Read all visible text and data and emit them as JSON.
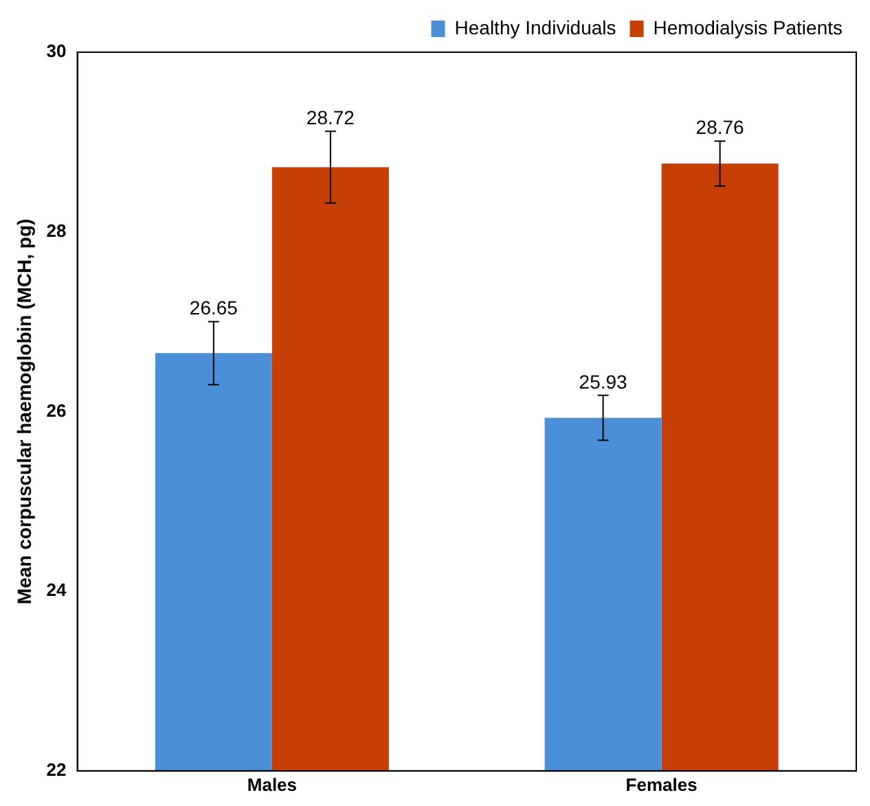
{
  "chart_data": {
    "type": "bar",
    "ylabel": "Mean corpuscular haemoglobin (MCH, pg)",
    "categories": [
      "Males",
      "Females"
    ],
    "series": [
      {
        "name": "Healthy Individuals",
        "color": "#4a8fd8",
        "values": [
          26.65,
          25.93
        ],
        "errors": [
          0.35,
          0.25
        ]
      },
      {
        "name": "Hemodialysis Patients",
        "color": "#c63f05",
        "values": [
          28.72,
          28.76
        ],
        "errors": [
          0.4,
          0.25
        ]
      }
    ],
    "ylim": [
      22,
      30
    ],
    "yticks": [
      22,
      24,
      26,
      28,
      30
    ],
    "grid": false,
    "legend": "top right",
    "data_labels": true
  }
}
